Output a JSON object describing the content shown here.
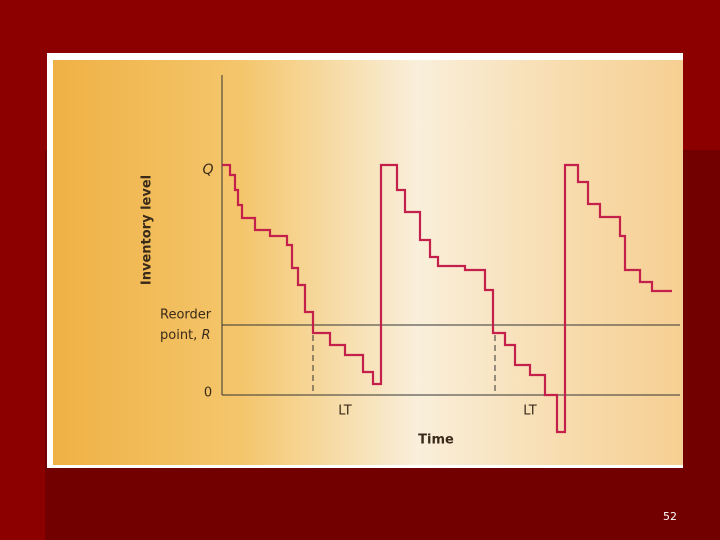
{
  "figure": {
    "y_axis_label": "Inventory level",
    "q_label": "Q",
    "reorder_point": {
      "line1": "Reorder",
      "line2": "point,",
      "symbol": "R"
    },
    "zero_label": "0",
    "lead_time_labels": [
      "LT",
      "LT"
    ],
    "x_axis_label": "Time"
  },
  "slide_number": "52"
}
